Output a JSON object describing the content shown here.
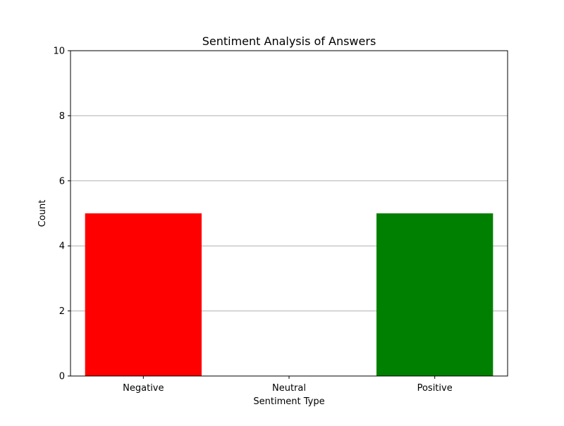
{
  "chart_data": {
    "type": "bar",
    "title": "Sentiment Analysis of Answers",
    "xlabel": "Sentiment Type",
    "ylabel": "Count",
    "categories": [
      "Negative",
      "Neutral",
      "Positive"
    ],
    "values": [
      5,
      0,
      5
    ],
    "colors": [
      "#ff0000",
      "#0000ff",
      "#008000"
    ],
    "ylim": [
      0,
      10
    ],
    "yticks": [
      0,
      2,
      4,
      6,
      8,
      10
    ],
    "grid": "y-axis only",
    "grid_color": "#b0b0b0",
    "legend": "none"
  }
}
